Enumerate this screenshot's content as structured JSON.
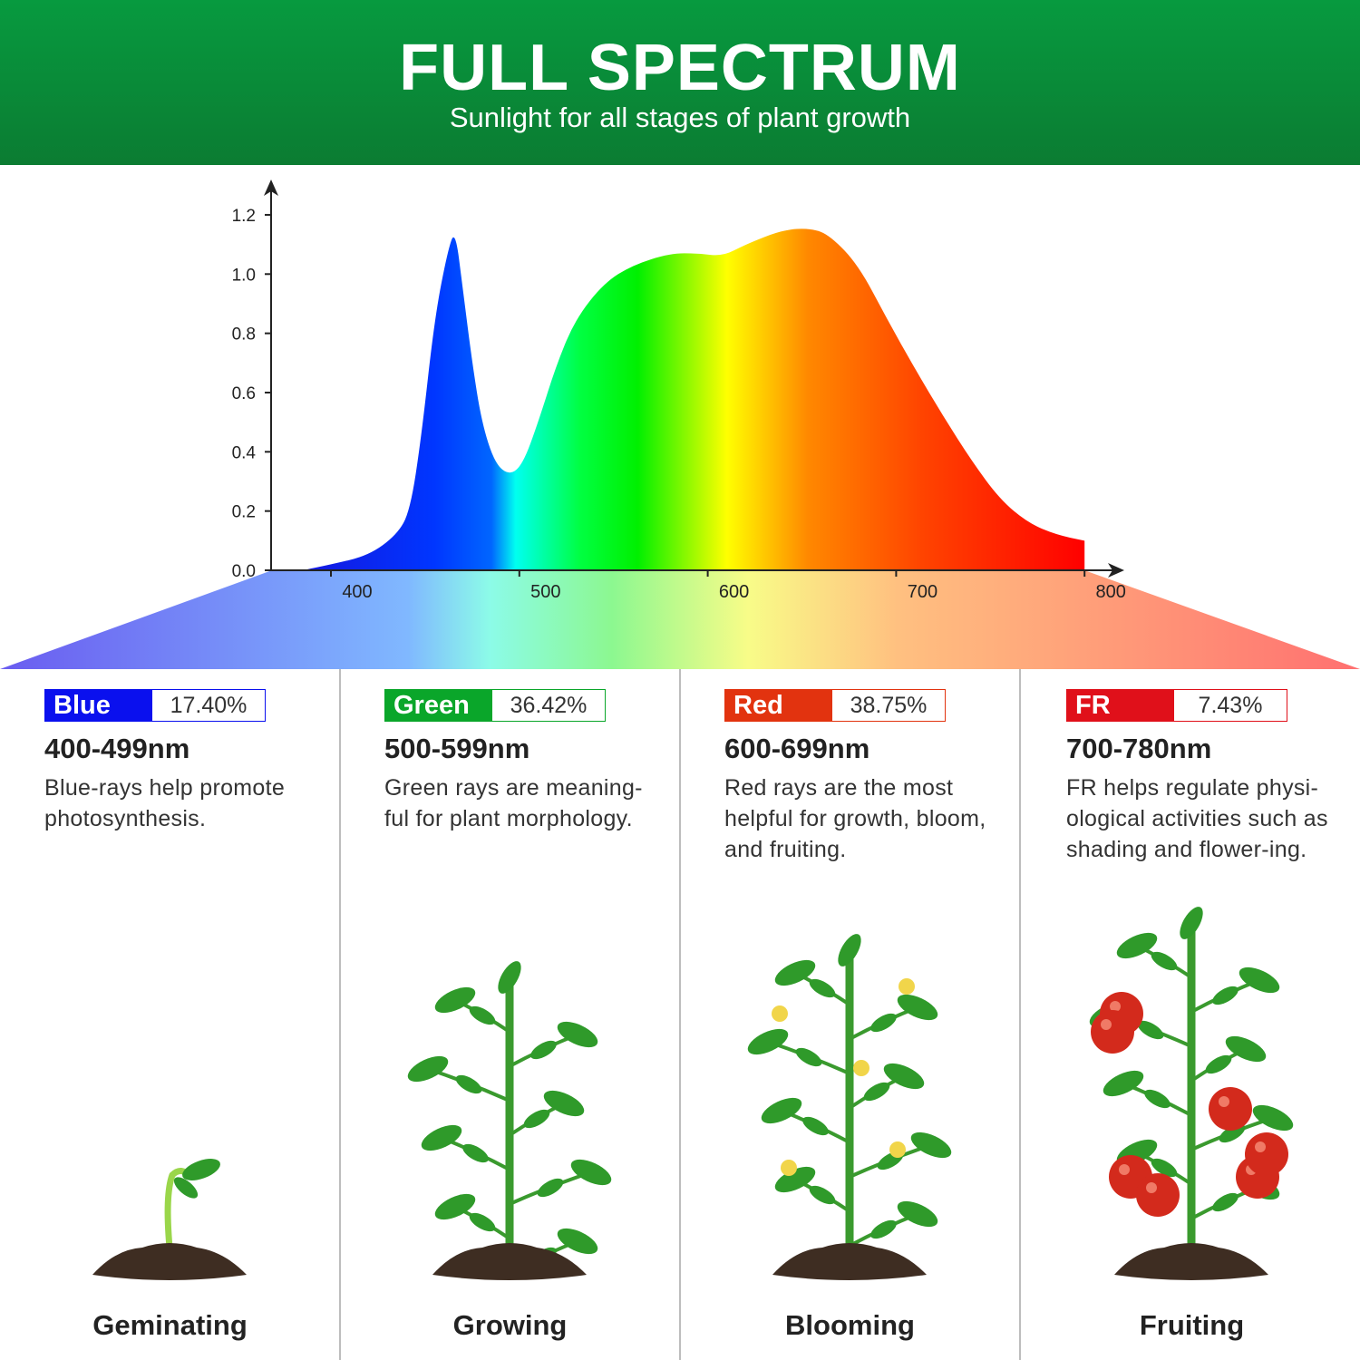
{
  "header": {
    "title": "FULL SPECTRUM",
    "subtitle": "Sunlight for all stages of plant growth"
  },
  "chart_data": {
    "type": "area",
    "title": "",
    "xlabel": "",
    "ylabel": "",
    "xlim": [
      370,
      800
    ],
    "ylim": [
      0,
      1.2
    ],
    "x_ticks": [
      "400",
      "500",
      "600",
      "700",
      "800"
    ],
    "y_ticks": [
      "0.0",
      "0.2",
      "0.4",
      "0.6",
      "0.8",
      "1.0",
      "1.2"
    ],
    "grid": false,
    "fill": "spectrum gradient (violet-blue to red)",
    "x": [
      385,
      400,
      420,
      435,
      442,
      448,
      455,
      462,
      466,
      470,
      475,
      480,
      487,
      495,
      502,
      510,
      520,
      530,
      545,
      560,
      580,
      595,
      608,
      620,
      640,
      655,
      665,
      680,
      695,
      710,
      725,
      740,
      755,
      770,
      785,
      800
    ],
    "y": [
      0.0,
      0.02,
      0.05,
      0.12,
      0.2,
      0.45,
      0.85,
      1.08,
      1.15,
      0.95,
      0.7,
      0.5,
      0.36,
      0.32,
      0.36,
      0.5,
      0.7,
      0.85,
      0.97,
      1.03,
      1.07,
      1.07,
      1.06,
      1.1,
      1.15,
      1.155,
      1.13,
      1.03,
      0.85,
      0.68,
      0.52,
      0.37,
      0.24,
      0.16,
      0.12,
      0.1
    ]
  },
  "bands": [
    {
      "name": "Blue",
      "percent": "17.40%",
      "range": "400-499nm",
      "desc": "Blue-rays help promote photosynthesis.",
      "stage": "Geminating",
      "color": "#0a10ee"
    },
    {
      "name": "Green",
      "percent": "36.42%",
      "range": "500-599nm",
      "desc": "Green rays are meaning-ful for plant morphology.",
      "stage": "Growing",
      "color": "#0aa62a"
    },
    {
      "name": "Red",
      "percent": "38.75%",
      "range": "600-699nm",
      "desc": "Red rays are the most helpful for growth, bloom, and fruiting.",
      "stage": "Blooming",
      "color": "#e2330f"
    },
    {
      "name": "FR",
      "percent": "7.43%",
      "range": "700-780nm",
      "desc": "FR helps regulate physi-ological activities such as shading and flower-ing.",
      "stage": "Fruiting",
      "color": "#e0101a"
    }
  ]
}
